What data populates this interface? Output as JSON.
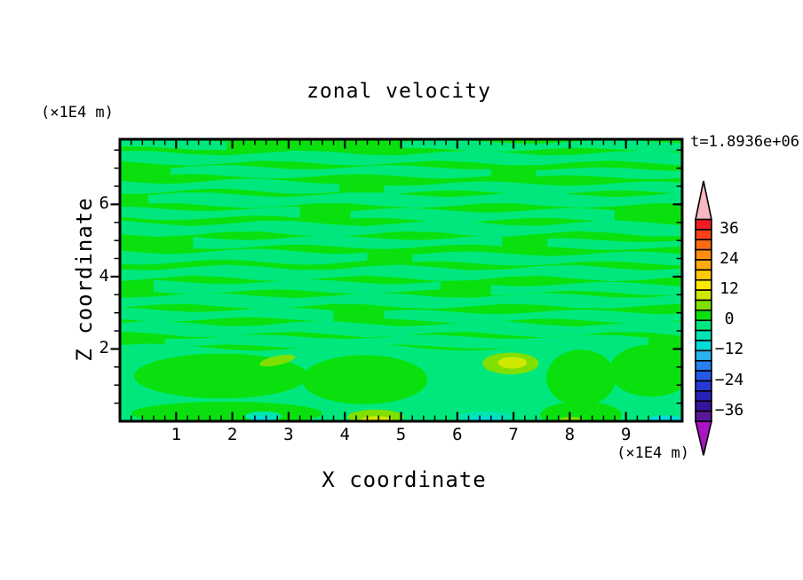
{
  "labels": {
    "title": "zonal velocity",
    "time": "t=1.8936e+06",
    "y_axis_unit": "(×1E4 m)",
    "x_axis_unit": "(×1E4 m)",
    "xlabel": "X coordinate",
    "ylabel": "Z coordinate"
  },
  "chart_data": {
    "type": "filled-contour",
    "title": "zonal velocity",
    "time_annotation": "t=1.8936e+06",
    "xlabel": "X coordinate",
    "ylabel": "Z coordinate",
    "x_unit": "(×1E4 m)",
    "z_unit": "(×1E4 m)",
    "x_range": [
      0,
      10
    ],
    "z_range": [
      0,
      7.8
    ],
    "x_major_ticks": [
      1,
      2,
      3,
      4,
      5,
      6,
      7,
      8,
      9
    ],
    "x_minor_step": 0.2,
    "z_major_ticks": [
      2,
      4,
      6
    ],
    "z_minor_step": 0.5,
    "grid": false,
    "levels_min": -40,
    "levels_max": 40,
    "contour_interval": 4,
    "colors": {
      "positive_band": "#0ae00e",
      "negative_band": "#00e87d",
      "frame": "#000000",
      "background": "#ffffff"
    },
    "colorbar": {
      "position": "right",
      "tick_labels": [
        "36",
        "24",
        "12",
        "0",
        "−12",
        "−24",
        "−36"
      ],
      "tick_values": [
        36,
        24,
        12,
        0,
        -12,
        -24,
        -36
      ],
      "cells_top_to_bottom": [
        "#ee1c23",
        "#fb4118",
        "#fe6c12",
        "#ff8d0e",
        "#ffab09",
        "#ffc906",
        "#ffe802",
        "#cfe800",
        "#7fe000",
        "#0ae00e",
        "#00e87d",
        "#00e5b2",
        "#00dcdc",
        "#28b4f0",
        "#2880f0",
        "#2856e8",
        "#2838d8",
        "#2820b6",
        "#35149e",
        "#5a1896"
      ],
      "over_arrow_color": "#f9b7bf",
      "under_arrow_color": "#aa14c3"
    },
    "field_bands": {
      "description": "velocity field oscillates between the −4–0 and 0–4 bands aloft; extrema 4–12 and −4 to −12 occur near the bottom boundary",
      "streak_fill": "#00e87d",
      "streaks": [
        {
          "z": 7.66,
          "x0": 0,
          "x1": 1.9,
          "h": 0.22,
          "amp": 0.05,
          "ph": 0
        },
        {
          "z": 7.62,
          "x0": 5.0,
          "x1": 10,
          "h": 0.22,
          "amp": 0.05,
          "ph": 2
        },
        {
          "z": 7.28,
          "x0": 0,
          "x1": 10,
          "h": 0.28,
          "amp": 0.07,
          "ph": 1
        },
        {
          "z": 6.9,
          "x0": 0.9,
          "x1": 6.6,
          "h": 0.25,
          "amp": 0.06,
          "ph": 4
        },
        {
          "z": 6.86,
          "x0": 7.4,
          "x1": 10,
          "h": 0.22,
          "amp": 0.05,
          "ph": 2.5
        },
        {
          "z": 6.5,
          "x0": 0,
          "x1": 3.9,
          "h": 0.28,
          "amp": 0.07,
          "ph": 3
        },
        {
          "z": 6.45,
          "x0": 4.7,
          "x1": 10,
          "h": 0.25,
          "amp": 0.06,
          "ph": 0.5
        },
        {
          "z": 6.12,
          "x0": 0.5,
          "x1": 10,
          "h": 0.3,
          "amp": 0.07,
          "ph": 5
        },
        {
          "z": 5.75,
          "x0": 0,
          "x1": 3.2,
          "h": 0.25,
          "amp": 0.06,
          "ph": 1.5
        },
        {
          "z": 5.7,
          "x0": 4.1,
          "x1": 8.8,
          "h": 0.27,
          "amp": 0.06,
          "ph": 3.5
        },
        {
          "z": 5.33,
          "x0": 0,
          "x1": 10,
          "h": 0.3,
          "amp": 0.08,
          "ph": 2
        },
        {
          "z": 4.95,
          "x0": 1.3,
          "x1": 6.8,
          "h": 0.25,
          "amp": 0.06,
          "ph": 0
        },
        {
          "z": 4.9,
          "x0": 7.6,
          "x1": 10,
          "h": 0.22,
          "amp": 0.05,
          "ph": 4
        },
        {
          "z": 4.55,
          "x0": 0,
          "x1": 4.4,
          "h": 0.3,
          "amp": 0.07,
          "ph": 2.8
        },
        {
          "z": 4.5,
          "x0": 5.2,
          "x1": 10,
          "h": 0.27,
          "amp": 0.06,
          "ph": 1.2
        },
        {
          "z": 4.1,
          "x0": 0,
          "x1": 10,
          "h": 0.3,
          "amp": 0.08,
          "ph": 3.8
        },
        {
          "z": 3.72,
          "x0": 0.6,
          "x1": 5.7,
          "h": 0.27,
          "amp": 0.06,
          "ph": 0.8
        },
        {
          "z": 3.67,
          "x0": 6.6,
          "x1": 10,
          "h": 0.25,
          "amp": 0.06,
          "ph": 2.2
        },
        {
          "z": 3.33,
          "x0": 0,
          "x1": 10,
          "h": 0.3,
          "amp": 0.07,
          "ph": 4.5
        },
        {
          "z": 2.95,
          "x0": 0,
          "x1": 3.8,
          "h": 0.27,
          "amp": 0.06,
          "ph": 1.8
        },
        {
          "z": 2.9,
          "x0": 4.7,
          "x1": 10,
          "h": 0.25,
          "amp": 0.06,
          "ph": 3.2
        },
        {
          "z": 2.55,
          "x0": 0,
          "x1": 10,
          "h": 0.3,
          "amp": 0.08,
          "ph": 0.3
        },
        {
          "z": 2.2,
          "x0": 0.8,
          "x1": 9.4,
          "h": 0.27,
          "amp": 0.06,
          "ph": 2.6
        }
      ],
      "bottom_region": {
        "fill": "#00e87d",
        "boundary_z": 2.05,
        "boundary_amp": 0.1,
        "blobs": [
          {
            "cx": 1.8,
            "cz": 1.25,
            "rx": 1.55,
            "rz": 0.62,
            "fill": "#0ae00e"
          },
          {
            "cx": 2.8,
            "cz": 1.68,
            "rx": 0.32,
            "rz": 0.13,
            "rot": -12,
            "fill": "#7fe000"
          },
          {
            "cx": 1.9,
            "cz": 0.22,
            "rx": 1.7,
            "rz": 0.32,
            "fill": "#0ae00e"
          },
          {
            "cx": 2.55,
            "cz": 0.14,
            "rx": 0.32,
            "rz": 0.13,
            "fill": "#00e5b2"
          },
          {
            "cx": 2.5,
            "cz": 0.07,
            "rx": 0.18,
            "rz": 0.07,
            "fill": "#00dcdc"
          },
          {
            "cx": 4.35,
            "cz": 1.15,
            "rx": 1.12,
            "rz": 0.68,
            "fill": "#0ae00e"
          },
          {
            "cx": 6.95,
            "cz": 1.6,
            "rx": 0.5,
            "rz": 0.3,
            "fill": "#7fe000"
          },
          {
            "cx": 6.98,
            "cz": 1.62,
            "rx": 0.26,
            "rz": 0.16,
            "fill": "#cfe800"
          },
          {
            "cx": 8.2,
            "cz": 1.2,
            "rx": 0.62,
            "rz": 0.78,
            "fill": "#0ae00e"
          },
          {
            "cx": 9.45,
            "cz": 1.4,
            "rx": 0.75,
            "rz": 0.72,
            "fill": "#0ae00e"
          },
          {
            "cx": 8.2,
            "cz": 0.18,
            "rx": 0.72,
            "rz": 0.36,
            "fill": "#0ae00e"
          },
          {
            "cx": 8.02,
            "cz": 0.04,
            "rx": 0.22,
            "rz": 0.08,
            "fill": "#7fe000"
          },
          {
            "cx": 4.55,
            "cz": 0.12,
            "rx": 0.5,
            "rz": 0.2,
            "fill": "#7fe000"
          },
          {
            "cx": 4.57,
            "cz": 0.04,
            "rx": 0.28,
            "rz": 0.1,
            "fill": "#cfe800"
          },
          {
            "cx": 6.5,
            "cz": 0.12,
            "rx": 0.48,
            "rz": 0.15,
            "fill": "#00e5b2"
          },
          {
            "cx": 6.5,
            "cz": 0.06,
            "rx": 0.26,
            "rz": 0.08,
            "fill": "#00dcdc"
          },
          {
            "cx": 9.7,
            "cz": 0.06,
            "rx": 0.3,
            "rz": 0.1,
            "fill": "#00dcdc"
          }
        ]
      }
    }
  }
}
